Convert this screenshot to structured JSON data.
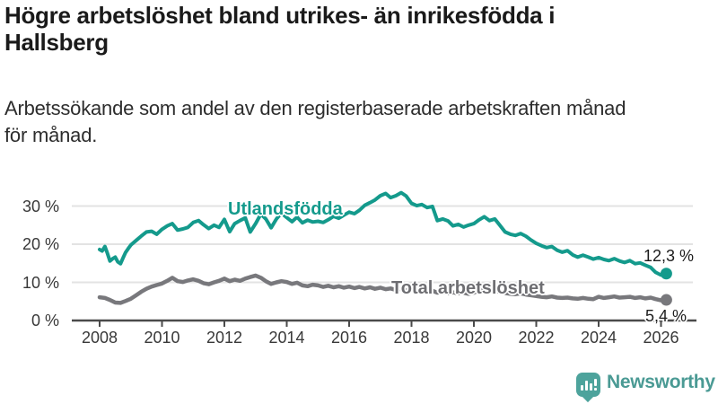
{
  "header": {
    "title_line1": "Högre arbetslöshet bland utrikes- än inrikesfödda i",
    "title_line2": "Hallsberg",
    "subtitle_line1": "Arbetssökande som andel av den registerbaserade arbetskraften månad",
    "subtitle_line2": "för månad."
  },
  "chart_data": {
    "type": "line",
    "title": "Högre arbetslöshet bland utrikes- än inrikesfödda i Hallsberg",
    "subtitle": "Arbetssökande som andel av den registerbaserade arbetskraften månad för månad.",
    "xlabel": "",
    "ylabel": "",
    "x_axis": {
      "tick_years": [
        2008,
        2010,
        2012,
        2014,
        2016,
        2018,
        2020,
        2022,
        2024,
        2026
      ],
      "tick_labels": [
        "2008",
        "2010",
        "2012",
        "2014",
        "2016",
        "2018",
        "2020",
        "2022",
        "2024",
        "2026"
      ],
      "range": [
        2007.1,
        2027.1
      ]
    },
    "y_axis": {
      "tick_values": [
        0,
        10,
        20,
        30
      ],
      "tick_labels": [
        "0 %",
        "10 %",
        "20 %",
        "30 %"
      ],
      "range": [
        0,
        34
      ],
      "unit": "%"
    },
    "grid": "horizontal",
    "legend_position": "inline-labels",
    "series": [
      {
        "name": "Utlandsfödda",
        "color": "#149a8c",
        "width": 4,
        "end_value": 12.3,
        "end_label": "12,3 %",
        "points": [
          [
            2008.0,
            18.6
          ],
          [
            2008.08,
            18.2
          ],
          [
            2008.17,
            19.4
          ],
          [
            2008.25,
            17.6
          ],
          [
            2008.33,
            15.6
          ],
          [
            2008.42,
            16.2
          ],
          [
            2008.5,
            16.6
          ],
          [
            2008.58,
            15.4
          ],
          [
            2008.67,
            14.9
          ],
          [
            2008.75,
            16.4
          ],
          [
            2008.83,
            17.8
          ],
          [
            2008.92,
            18.9
          ],
          [
            2009.0,
            19.8
          ],
          [
            2009.17,
            21.0
          ],
          [
            2009.33,
            22.1
          ],
          [
            2009.5,
            23.2
          ],
          [
            2009.67,
            23.4
          ],
          [
            2009.83,
            22.6
          ],
          [
            2010.0,
            23.9
          ],
          [
            2010.17,
            24.8
          ],
          [
            2010.33,
            25.4
          ],
          [
            2010.5,
            23.7
          ],
          [
            2010.67,
            24.0
          ],
          [
            2010.83,
            24.4
          ],
          [
            2011.0,
            25.7
          ],
          [
            2011.17,
            26.2
          ],
          [
            2011.33,
            25.1
          ],
          [
            2011.5,
            24.1
          ],
          [
            2011.67,
            25.0
          ],
          [
            2011.83,
            24.4
          ],
          [
            2012.0,
            26.5
          ],
          [
            2012.17,
            23.3
          ],
          [
            2012.33,
            25.4
          ],
          [
            2012.5,
            26.2
          ],
          [
            2012.67,
            26.9
          ],
          [
            2012.83,
            23.2
          ],
          [
            2013.0,
            25.4
          ],
          [
            2013.17,
            27.9
          ],
          [
            2013.33,
            26.6
          ],
          [
            2013.5,
            24.3
          ],
          [
            2013.67,
            26.6
          ],
          [
            2013.83,
            28.2
          ],
          [
            2014.0,
            27.0
          ],
          [
            2014.17,
            25.9
          ],
          [
            2014.33,
            27.1
          ],
          [
            2014.5,
            25.6
          ],
          [
            2014.67,
            26.3
          ],
          [
            2014.83,
            25.8
          ],
          [
            2015.0,
            26.0
          ],
          [
            2015.17,
            25.7
          ],
          [
            2015.33,
            26.4
          ],
          [
            2015.5,
            27.3
          ],
          [
            2015.67,
            26.8
          ],
          [
            2015.83,
            27.6
          ],
          [
            2016.0,
            28.4
          ],
          [
            2016.17,
            28.0
          ],
          [
            2016.33,
            28.9
          ],
          [
            2016.5,
            30.2
          ],
          [
            2016.67,
            30.9
          ],
          [
            2016.83,
            31.6
          ],
          [
            2017.0,
            32.7
          ],
          [
            2017.17,
            33.3
          ],
          [
            2017.33,
            32.2
          ],
          [
            2017.5,
            32.7
          ],
          [
            2017.67,
            33.5
          ],
          [
            2017.83,
            32.6
          ],
          [
            2018.0,
            30.7
          ],
          [
            2018.17,
            30.1
          ],
          [
            2018.33,
            30.4
          ],
          [
            2018.5,
            29.6
          ],
          [
            2018.67,
            29.9
          ],
          [
            2018.83,
            26.2
          ],
          [
            2019.0,
            26.6
          ],
          [
            2019.17,
            26.1
          ],
          [
            2019.33,
            24.8
          ],
          [
            2019.5,
            25.2
          ],
          [
            2019.67,
            24.5
          ],
          [
            2019.83,
            25.0
          ],
          [
            2020.0,
            25.4
          ],
          [
            2020.17,
            26.4
          ],
          [
            2020.33,
            27.2
          ],
          [
            2020.5,
            26.2
          ],
          [
            2020.67,
            26.6
          ],
          [
            2020.83,
            25.0
          ],
          [
            2021.0,
            23.2
          ],
          [
            2021.17,
            22.6
          ],
          [
            2021.33,
            22.3
          ],
          [
            2021.5,
            22.8
          ],
          [
            2021.67,
            22.1
          ],
          [
            2021.83,
            21.1
          ],
          [
            2022.0,
            20.2
          ],
          [
            2022.17,
            19.6
          ],
          [
            2022.33,
            19.1
          ],
          [
            2022.5,
            19.4
          ],
          [
            2022.67,
            18.4
          ],
          [
            2022.83,
            17.9
          ],
          [
            2023.0,
            18.3
          ],
          [
            2023.17,
            17.2
          ],
          [
            2023.33,
            16.6
          ],
          [
            2023.5,
            17.1
          ],
          [
            2023.67,
            16.6
          ],
          [
            2023.83,
            16.1
          ],
          [
            2024.0,
            16.5
          ],
          [
            2024.17,
            16.0
          ],
          [
            2024.33,
            15.7
          ],
          [
            2024.5,
            16.2
          ],
          [
            2024.67,
            15.6
          ],
          [
            2024.83,
            15.2
          ],
          [
            2025.0,
            15.7
          ],
          [
            2025.17,
            14.9
          ],
          [
            2025.33,
            15.1
          ],
          [
            2025.5,
            14.5
          ],
          [
            2025.67,
            13.9
          ],
          [
            2025.83,
            12.6
          ],
          [
            2026.0,
            11.9
          ],
          [
            2026.17,
            12.3
          ]
        ]
      },
      {
        "name": "Total arbetslöshet",
        "color": "#78787c",
        "width": 4.5,
        "end_value": 5.4,
        "end_label": "5,4 %",
        "points": [
          [
            2008.0,
            6.1
          ],
          [
            2008.17,
            5.9
          ],
          [
            2008.33,
            5.4
          ],
          [
            2008.5,
            4.7
          ],
          [
            2008.67,
            4.6
          ],
          [
            2008.83,
            5.1
          ],
          [
            2009.0,
            5.7
          ],
          [
            2009.17,
            6.6
          ],
          [
            2009.33,
            7.5
          ],
          [
            2009.5,
            8.3
          ],
          [
            2009.67,
            8.9
          ],
          [
            2009.83,
            9.3
          ],
          [
            2010.0,
            9.7
          ],
          [
            2010.17,
            10.4
          ],
          [
            2010.33,
            11.2
          ],
          [
            2010.5,
            10.3
          ],
          [
            2010.67,
            10.1
          ],
          [
            2010.83,
            10.5
          ],
          [
            2011.0,
            10.8
          ],
          [
            2011.17,
            10.4
          ],
          [
            2011.33,
            9.8
          ],
          [
            2011.5,
            9.5
          ],
          [
            2011.67,
            10.0
          ],
          [
            2011.83,
            10.4
          ],
          [
            2012.0,
            11.0
          ],
          [
            2012.17,
            10.3
          ],
          [
            2012.33,
            10.7
          ],
          [
            2012.5,
            10.4
          ],
          [
            2012.67,
            11.0
          ],
          [
            2012.83,
            11.4
          ],
          [
            2013.0,
            11.8
          ],
          [
            2013.17,
            11.2
          ],
          [
            2013.33,
            10.3
          ],
          [
            2013.5,
            9.6
          ],
          [
            2013.67,
            10.0
          ],
          [
            2013.83,
            10.3
          ],
          [
            2014.0,
            10.1
          ],
          [
            2014.17,
            9.6
          ],
          [
            2014.33,
            9.9
          ],
          [
            2014.5,
            9.2
          ],
          [
            2014.67,
            9.0
          ],
          [
            2014.83,
            9.4
          ],
          [
            2015.0,
            9.2
          ],
          [
            2015.17,
            8.8
          ],
          [
            2015.33,
            9.1
          ],
          [
            2015.5,
            8.7
          ],
          [
            2015.67,
            9.0
          ],
          [
            2015.83,
            8.6
          ],
          [
            2016.0,
            8.9
          ],
          [
            2016.17,
            8.5
          ],
          [
            2016.33,
            8.8
          ],
          [
            2016.5,
            8.4
          ],
          [
            2016.67,
            8.7
          ],
          [
            2016.83,
            8.3
          ],
          [
            2017.0,
            8.6
          ],
          [
            2017.17,
            8.2
          ],
          [
            2017.33,
            8.4
          ],
          [
            2017.5,
            8.0
          ],
          [
            2017.67,
            8.3
          ],
          [
            2017.83,
            7.9
          ],
          [
            2018.0,
            8.2
          ],
          [
            2018.17,
            7.8
          ],
          [
            2018.33,
            8.0
          ],
          [
            2018.5,
            7.6
          ],
          [
            2018.67,
            7.8
          ],
          [
            2018.83,
            7.3
          ],
          [
            2019.0,
            7.5
          ],
          [
            2019.17,
            7.2
          ],
          [
            2019.33,
            7.4
          ],
          [
            2019.5,
            7.1
          ],
          [
            2019.67,
            7.3
          ],
          [
            2019.83,
            7.0
          ],
          [
            2020.0,
            7.3
          ],
          [
            2020.17,
            7.9
          ],
          [
            2020.33,
            8.4
          ],
          [
            2020.5,
            8.1
          ],
          [
            2020.67,
            7.8
          ],
          [
            2020.83,
            7.5
          ],
          [
            2021.0,
            7.2
          ],
          [
            2021.17,
            7.0
          ],
          [
            2021.33,
            6.9
          ],
          [
            2021.5,
            7.1
          ],
          [
            2021.67,
            6.8
          ],
          [
            2021.83,
            6.6
          ],
          [
            2022.0,
            6.4
          ],
          [
            2022.17,
            6.2
          ],
          [
            2022.33,
            6.1
          ],
          [
            2022.5,
            6.3
          ],
          [
            2022.67,
            6.0
          ],
          [
            2022.83,
            5.9
          ],
          [
            2023.0,
            6.0
          ],
          [
            2023.17,
            5.8
          ],
          [
            2023.33,
            5.7
          ],
          [
            2023.5,
            5.9
          ],
          [
            2023.67,
            5.7
          ],
          [
            2023.83,
            5.6
          ],
          [
            2024.0,
            6.2
          ],
          [
            2024.17,
            5.9
          ],
          [
            2024.33,
            6.1
          ],
          [
            2024.5,
            6.3
          ],
          [
            2024.67,
            6.0
          ],
          [
            2024.83,
            6.1
          ],
          [
            2025.0,
            6.2
          ],
          [
            2025.17,
            5.9
          ],
          [
            2025.33,
            6.1
          ],
          [
            2025.5,
            5.8
          ],
          [
            2025.67,
            6.0
          ],
          [
            2025.83,
            5.6
          ],
          [
            2026.0,
            5.3
          ],
          [
            2026.17,
            5.4
          ]
        ]
      }
    ]
  },
  "footer": {
    "brand": "Newsworthy",
    "logo_icon": "bar-chart-speech-bubble",
    "brand_color": "#4a9a94",
    "icon_color": "#4da39c"
  },
  "colors": {
    "title_text": "#1a1a1a",
    "body_text": "#2d2d2d",
    "axis_text": "#383838",
    "grid": "#e3e3e3",
    "axis": "#4a4a4a",
    "series_teal": "#149a8c",
    "series_gray": "#78787c",
    "background": "#ffffff"
  }
}
